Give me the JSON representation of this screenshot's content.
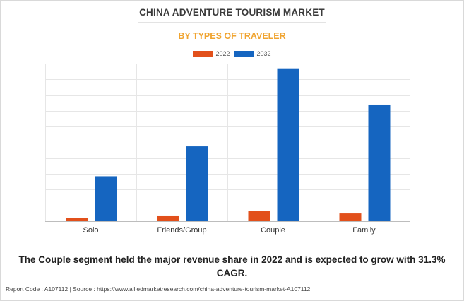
{
  "title": "CHINA ADVENTURE TOURISM MARKET",
  "subtitle": "BY TYPES OF TRAVELER",
  "caption": "The Couple segment held the major revenue share in 2022 and is expected to grow with 31.3% CAGR.",
  "footer": "Report Code : A107112  |  Source : https://www.alliedmarketresearch.com/china-adventure-tourism-market-A107112",
  "colors": {
    "series_2022": "#e2501b",
    "series_2032": "#1565c0",
    "title": "#3a3a3a",
    "subtitle": "#f0a430"
  },
  "chart_data": {
    "type": "bar",
    "categories": [
      "Solo",
      "Friends/Group",
      "Couple",
      "Family"
    ],
    "series": [
      {
        "name": "2022",
        "values": [
          1.9,
          3.6,
          6.6,
          4.9
        ]
      },
      {
        "name": "2032",
        "values": [
          28.5,
          47.5,
          97.0,
          74.0
        ]
      }
    ],
    "ylim": [
      0,
      100
    ],
    "grid": true,
    "legend": "top-center",
    "y_tick_labels_shown": false
  }
}
